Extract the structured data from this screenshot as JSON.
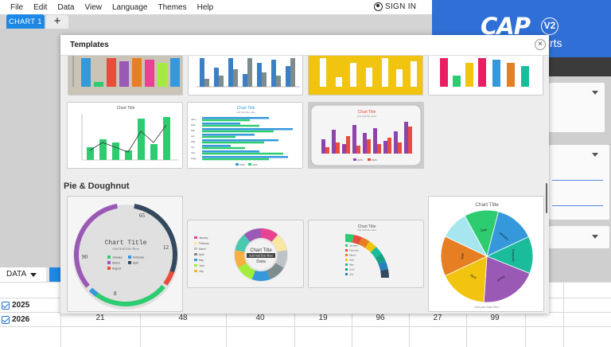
{
  "menu": [
    "File",
    "Edit",
    "Data",
    "View",
    "Language",
    "Themes",
    "Help"
  ],
  "signin_label": "SIGN IN",
  "tabs": {
    "chart1": "CHART 1",
    "add": "+"
  },
  "brand": {
    "logo": "CAP",
    "version": "V2",
    "tail": "rts"
  },
  "data_tab": "DATA",
  "rows": [
    {
      "label": "2025",
      "checked": true
    },
    {
      "label": "2026",
      "checked": true,
      "values": [
        "21",
        "48",
        "40",
        "19",
        "96",
        "27",
        "99"
      ]
    }
  ],
  "modal": {
    "title": "Templates",
    "close": "×",
    "section_pie": "Pie & Doughnut"
  },
  "templates": {
    "bar_a": {
      "title": "Chart Title"
    },
    "hbar": {
      "title": "Chart Title",
      "subtitle": "Add SubTitle Here",
      "legend": [
        "2025",
        "2026"
      ],
      "categories": [
        "Janu",
        "Febr",
        "Mar",
        "Apr",
        "May",
        "Jun",
        "July",
        "Augu"
      ]
    },
    "bar_c": {
      "title": "Chart Title",
      "subtitle": "Add SubTitle Here",
      "legend": [
        "2025",
        "2026"
      ]
    },
    "donut1": {
      "title": "Chart Title",
      "subtitle": "Add SubTitle Here",
      "labels": {
        "a": "65",
        "b": "12",
        "c": "90",
        "d": "8"
      },
      "legend": [
        "January",
        "February",
        "March",
        "April",
        "August"
      ],
      "colors": [
        "#34495e",
        "#2ecc71",
        "#9b59b6",
        "#3498db",
        "#e74c3c"
      ]
    },
    "donut2": {
      "title": "Chart Title",
      "subtitle": "Add SubTitle Here",
      "center": "Data",
      "legend": [
        "January",
        "February",
        "March",
        "April",
        "May",
        "June",
        "July"
      ]
    },
    "gauge": {
      "title": "Chart Title",
      "subtitle": "Add SubTitle Here",
      "legend": [
        "January",
        "February",
        "March",
        "April",
        "May",
        "June",
        "July"
      ]
    },
    "pie": {
      "title": "Chart Title",
      "footer": "Add your Data Here",
      "slices": [
        "June",
        "January",
        "February",
        "March",
        "April",
        "May"
      ]
    }
  }
}
